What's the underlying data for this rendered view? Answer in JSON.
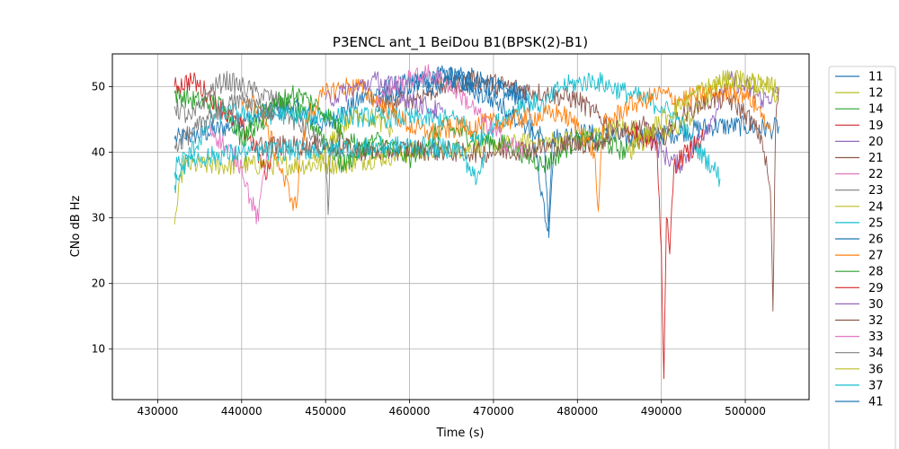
{
  "chart_data": {
    "type": "line",
    "title": "P3ENCL ant_1 BeiDou B1(BPSK(2)-B1)",
    "xlabel": "Time (s)",
    "ylabel": "CNo dB Hz",
    "xlim": [
      424600,
      507600
    ],
    "ylim": [
      2.3,
      55
    ],
    "xticks": [
      430000,
      440000,
      450000,
      460000,
      470000,
      480000,
      490000,
      500000
    ],
    "yticks": [
      10,
      20,
      30,
      40,
      50
    ],
    "grid": true,
    "legend": "right, outside",
    "legend_entries": [
      "11",
      "12",
      "14",
      "19",
      "20",
      "21",
      "22",
      "23",
      "24",
      "25",
      "26",
      "27",
      "28",
      "29",
      "30",
      "32",
      "33",
      "34",
      "36",
      "37",
      "41"
    ],
    "series": [
      {
        "name": "11",
        "color": "#1f77b4",
        "points": [
          [
            432000,
            42
          ],
          [
            436000,
            43
          ],
          [
            441000,
            45
          ],
          [
            446000,
            47
          ],
          [
            450000,
            44
          ],
          [
            454000,
            48
          ],
          [
            458000,
            50
          ],
          [
            462000,
            51
          ],
          [
            466000,
            52
          ],
          [
            470000,
            50
          ],
          [
            474000,
            48
          ],
          [
            476500,
            28
          ],
          [
            477000,
            42
          ],
          [
            480000,
            43
          ],
          [
            487000,
            42
          ],
          [
            492000,
            43
          ],
          [
            496000,
            44
          ],
          [
            500000,
            44
          ],
          [
            503000,
            43.5
          ],
          [
            504000,
            44
          ]
        ]
      },
      {
        "name": "12",
        "color": "#bcbd22",
        "points": [
          [
            432000,
            29
          ],
          [
            433000,
            38
          ],
          [
            440000,
            38
          ],
          [
            452000,
            38.2
          ],
          [
            460000,
            40
          ],
          [
            470000,
            41
          ],
          [
            480000,
            42
          ],
          [
            486000,
            44
          ],
          [
            490000,
            42
          ],
          [
            494000,
            46
          ],
          [
            497000,
            51
          ],
          [
            500000,
            51
          ],
          [
            503000,
            50
          ],
          [
            504000,
            48
          ]
        ]
      },
      {
        "name": "14",
        "color": "#2ca02c",
        "points": [
          [
            432000,
            49
          ],
          [
            434000,
            48
          ],
          [
            438000,
            47
          ],
          [
            440000,
            42
          ],
          [
            442000,
            47
          ],
          [
            444000,
            48
          ],
          [
            448000,
            45
          ],
          [
            450000,
            42
          ],
          [
            452000,
            38
          ],
          [
            456000,
            42
          ],
          [
            460000,
            39
          ],
          [
            464000,
            44
          ],
          [
            468000,
            42
          ],
          [
            472000,
            41
          ],
          [
            476000,
            38
          ],
          [
            480000,
            42
          ],
          [
            484000,
            41
          ],
          [
            486000,
            40
          ]
        ]
      },
      {
        "name": "19",
        "color": "#d62728",
        "points": [
          [
            432000,
            50
          ],
          [
            434000,
            51
          ],
          [
            436000,
            49
          ],
          [
            438000,
            46
          ],
          [
            440000,
            44
          ],
          [
            441500,
            41
          ],
          [
            442500,
            38
          ],
          [
            443000,
            36
          ],
          [
            443500,
            40
          ]
        ]
      },
      {
        "name": "20",
        "color": "#9467bd",
        "points": [
          [
            488000,
            44
          ],
          [
            490000,
            40
          ],
          [
            492000,
            38
          ],
          [
            494000,
            41
          ],
          [
            496000,
            45
          ],
          [
            498000,
            51
          ],
          [
            500000,
            50
          ],
          [
            502000,
            48
          ],
          [
            504000,
            49
          ]
        ]
      },
      {
        "name": "21",
        "color": "#8c564b",
        "points": [
          [
            456000,
            47
          ],
          [
            460000,
            48
          ],
          [
            464000,
            50
          ],
          [
            468000,
            51
          ],
          [
            472000,
            50
          ],
          [
            476000,
            49
          ],
          [
            480000,
            48
          ],
          [
            482000,
            46
          ],
          [
            484000,
            44
          ],
          [
            486000,
            43
          ],
          [
            488000,
            44
          ],
          [
            490000,
            42
          ],
          [
            492000,
            45
          ],
          [
            494000,
            47
          ],
          [
            496000,
            48
          ],
          [
            498000,
            48
          ],
          [
            500000,
            46
          ],
          [
            502000,
            42
          ],
          [
            503000,
            34
          ],
          [
            503300,
            15.8
          ],
          [
            503600,
            44
          ],
          [
            504000,
            50
          ]
        ]
      },
      {
        "name": "22",
        "color": "#e377c2",
        "points": [
          [
            436000,
            44
          ],
          [
            438000,
            41
          ],
          [
            440000,
            38
          ],
          [
            441000,
            33
          ],
          [
            442000,
            29.5
          ],
          [
            442500,
            36
          ],
          [
            443000,
            40
          ]
        ]
      },
      {
        "name": "23",
        "color": "#7f7f7f",
        "points": [
          [
            432000,
            47
          ],
          [
            434000,
            45
          ],
          [
            436000,
            49
          ],
          [
            438000,
            51
          ],
          [
            440000,
            50
          ],
          [
            442000,
            49
          ],
          [
            444000,
            48
          ],
          [
            446000,
            45
          ],
          [
            448000,
            43
          ],
          [
            450000,
            40
          ],
          [
            450300,
            30.5
          ],
          [
            450600,
            41
          ],
          [
            452000,
            42
          ]
        ]
      },
      {
        "name": "24",
        "color": "#bcbd22",
        "points": [
          [
            448000,
            38
          ],
          [
            450000,
            40
          ],
          [
            452000,
            44
          ],
          [
            454000,
            46
          ],
          [
            456000,
            45
          ],
          [
            458000,
            43
          ]
        ]
      },
      {
        "name": "25",
        "color": "#17becf",
        "points": [
          [
            432000,
            35
          ],
          [
            434000,
            40
          ],
          [
            436000,
            44
          ],
          [
            437000,
            46
          ],
          [
            466000,
            45
          ],
          [
            468000,
            42
          ],
          [
            470000,
            44
          ],
          [
            472000,
            46
          ],
          [
            474000,
            48
          ],
          [
            476000,
            47
          ],
          [
            478000,
            50
          ],
          [
            482000,
            51
          ],
          [
            486000,
            49
          ],
          [
            488000,
            48
          ],
          [
            490000,
            47
          ],
          [
            492000,
            45
          ],
          [
            494000,
            41
          ],
          [
            496000,
            38
          ],
          [
            497000,
            36
          ]
        ]
      },
      {
        "name": "26",
        "color": "#1f77b4",
        "points": [
          [
            456000,
            48
          ],
          [
            458000,
            49
          ],
          [
            460000,
            50
          ],
          [
            462000,
            51
          ],
          [
            464000,
            52
          ],
          [
            466000,
            51
          ],
          [
            468000,
            49
          ],
          [
            470000,
            48
          ],
          [
            472000,
            46
          ],
          [
            474000,
            44
          ],
          [
            476000,
            42
          ],
          [
            476600,
            27
          ],
          [
            477200,
            40
          ]
        ]
      },
      {
        "name": "27",
        "color": "#ff7f0e",
        "points": [
          [
            440000,
            48
          ],
          [
            442000,
            47
          ],
          [
            443000,
            44
          ],
          [
            444000,
            40
          ],
          [
            445000,
            36
          ],
          [
            446000,
            33
          ],
          [
            446500,
            31.5
          ],
          [
            447000,
            40
          ],
          [
            448000,
            46
          ],
          [
            450000,
            49
          ],
          [
            452000,
            50
          ],
          [
            454000,
            50
          ],
          [
            456000,
            48
          ],
          [
            458000,
            46
          ],
          [
            460000,
            44
          ],
          [
            462000,
            43
          ],
          [
            478000,
            46
          ],
          [
            480000,
            44
          ],
          [
            482000,
            40
          ],
          [
            482500,
            31
          ],
          [
            483000,
            44
          ],
          [
            486000,
            47
          ],
          [
            490000,
            49
          ],
          [
            492000,
            48
          ],
          [
            496000,
            49
          ],
          [
            500000,
            49
          ],
          [
            502000,
            46
          ],
          [
            503000,
            43
          ]
        ]
      },
      {
        "name": "28",
        "color": "#2ca02c",
        "points": [
          [
            440000,
            42
          ],
          [
            442000,
            44
          ],
          [
            444000,
            47
          ],
          [
            446000,
            49
          ],
          [
            448000,
            48
          ],
          [
            450000,
            46
          ],
          [
            452000,
            43
          ],
          [
            454000,
            41
          ],
          [
            456000,
            40
          ],
          [
            458000,
            41
          ]
        ]
      },
      {
        "name": "29",
        "color": "#d62728",
        "points": [
          [
            486000,
            44
          ],
          [
            488000,
            42
          ],
          [
            489500,
            40
          ],
          [
            490000,
            25
          ],
          [
            490300,
            5.5
          ],
          [
            490600,
            30
          ],
          [
            491000,
            24.5
          ],
          [
            491500,
            38
          ],
          [
            493000,
            40
          ],
          [
            495000,
            42
          ]
        ]
      },
      {
        "name": "30",
        "color": "#9467bd",
        "points": [
          [
            450000,
            48
          ],
          [
            452000,
            49
          ],
          [
            454000,
            50
          ],
          [
            456000,
            51
          ],
          [
            458000,
            50
          ],
          [
            460000,
            48
          ],
          [
            462000,
            47
          ],
          [
            464000,
            46
          ]
        ]
      },
      {
        "name": "32",
        "color": "#8c564b",
        "points": [
          [
            442000,
            41
          ],
          [
            444000,
            41
          ],
          [
            450000,
            41
          ],
          [
            456000,
            40
          ],
          [
            460000,
            40.5
          ],
          [
            466000,
            40
          ],
          [
            470000,
            40
          ],
          [
            474000,
            40.5
          ],
          [
            478000,
            41
          ],
          [
            482000,
            41.5
          ],
          [
            484000,
            42
          ]
        ]
      },
      {
        "name": "33",
        "color": "#e377c2",
        "points": [
          [
            456000,
            48
          ],
          [
            458000,
            50
          ],
          [
            460000,
            51
          ],
          [
            462000,
            52
          ],
          [
            464000,
            51
          ],
          [
            466000,
            49
          ],
          [
            468000,
            46
          ],
          [
            470000,
            43
          ],
          [
            472000,
            41
          ],
          [
            474000,
            40
          ]
        ]
      },
      {
        "name": "34",
        "color": "#7f7f7f",
        "points": [
          [
            432000,
            41
          ],
          [
            434000,
            43
          ],
          [
            436000,
            45
          ],
          [
            438000,
            47
          ],
          [
            440000,
            48
          ],
          [
            442000,
            47
          ],
          [
            444000,
            46
          ]
        ]
      },
      {
        "name": "36",
        "color": "#bcbd22",
        "points": [
          [
            486000,
            40
          ],
          [
            488000,
            42
          ],
          [
            490000,
            45
          ],
          [
            492000,
            47
          ],
          [
            494000,
            49
          ],
          [
            496000,
            50
          ],
          [
            498000,
            51
          ],
          [
            500000,
            51
          ],
          [
            502000,
            50
          ],
          [
            504000,
            50
          ]
        ]
      },
      {
        "name": "37",
        "color": "#17becf",
        "points": [
          [
            432000,
            37
          ],
          [
            433000,
            40
          ],
          [
            434000,
            39
          ],
          [
            440000,
            40
          ],
          [
            450000,
            40.5
          ],
          [
            460000,
            41
          ],
          [
            466000,
            40.5
          ],
          [
            468000,
            35.5
          ],
          [
            469000,
            40
          ]
        ]
      },
      {
        "name": "41",
        "color": "#1f77b4",
        "points": [
          [
            462000,
            50
          ],
          [
            466000,
            51
          ],
          [
            470000,
            50
          ],
          [
            474000,
            49
          ]
        ]
      }
    ]
  }
}
